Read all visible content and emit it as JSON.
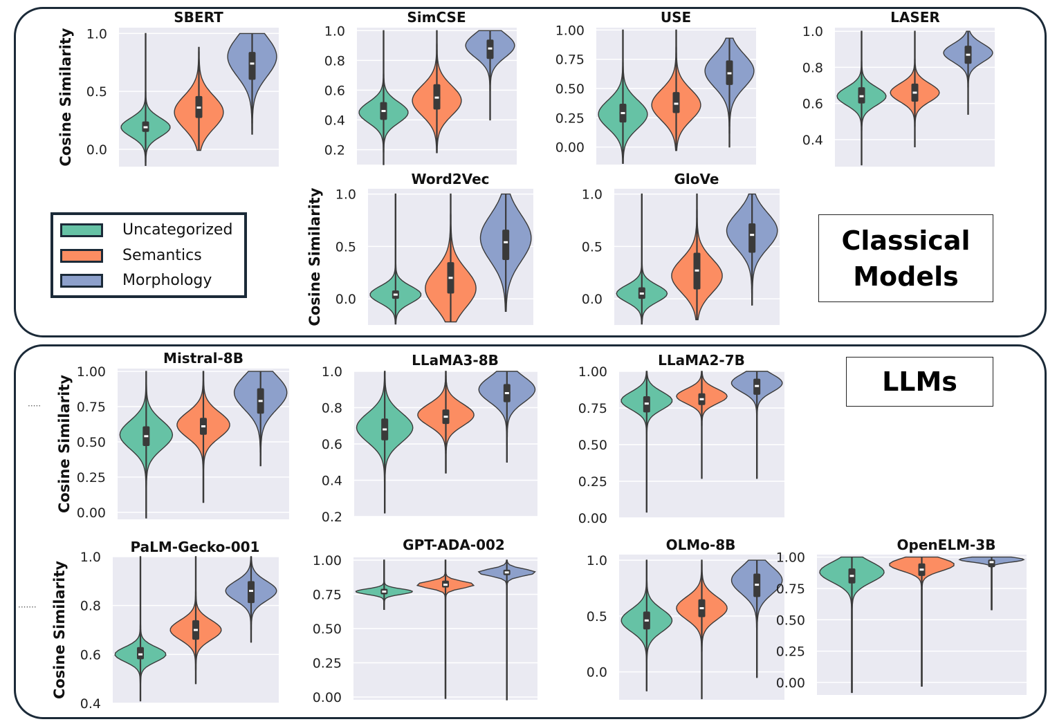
{
  "sections": {
    "classical_label": "Classical\nModels",
    "llms_label": "LLMs"
  },
  "legend": {
    "items": [
      {
        "label": "Uncategorized",
        "color": "#66c2a5"
      },
      {
        "label": "Semantics",
        "color": "#fc8d62"
      },
      {
        "label": "Morphology",
        "color": "#8da0cb"
      }
    ]
  },
  "chart_data": [
    {
      "type": "violin",
      "title": "SBERT",
      "ylabel": "Cosine Similarity",
      "ylim": [
        -0.15,
        1.05
      ],
      "ticks": [
        "0.0",
        "0.5",
        "1.0"
      ],
      "tick_values": [
        0,
        0.5,
        1.0
      ],
      "series": [
        {
          "name": "Uncategorized",
          "min": -0.14,
          "q1": 0.15,
          "median": 0.19,
          "q3": 0.24,
          "max": 1.0,
          "mode": 0.19,
          "spread": 0.08
        },
        {
          "name": "Semantics",
          "min": -0.01,
          "q1": 0.27,
          "median": 0.36,
          "q3": 0.46,
          "max": 0.88,
          "mode": 0.32,
          "spread": 0.14
        },
        {
          "name": "Morphology",
          "min": 0.13,
          "q1": 0.6,
          "median": 0.74,
          "q3": 0.84,
          "max": 1.0,
          "mode": 0.8,
          "spread": 0.17
        }
      ]
    },
    {
      "type": "violin",
      "title": "SimCSE",
      "ylabel": "",
      "ylim": [
        0.1,
        1.02
      ],
      "ticks": [
        "0.2",
        "0.4",
        "0.6",
        "0.8",
        "1.0"
      ],
      "tick_values": [
        0.2,
        0.4,
        0.6,
        0.8,
        1.0
      ],
      "series": [
        {
          "name": "Uncategorized",
          "min": 0.1,
          "q1": 0.4,
          "median": 0.46,
          "q3": 0.52,
          "max": 1.0,
          "mode": 0.45,
          "spread": 0.07
        },
        {
          "name": "Semantics",
          "min": 0.18,
          "q1": 0.47,
          "median": 0.55,
          "q3": 0.64,
          "max": 1.0,
          "mode": 0.53,
          "spread": 0.1
        },
        {
          "name": "Morphology",
          "min": 0.4,
          "q1": 0.81,
          "median": 0.88,
          "q3": 0.94,
          "max": 1.0,
          "mode": 0.9,
          "spread": 0.08
        }
      ]
    },
    {
      "type": "violin",
      "title": "USE",
      "ylabel": "",
      "ylim": [
        -0.15,
        1.02
      ],
      "ticks": [
        "0.00",
        "0.25",
        "0.50",
        "0.75",
        "1.00"
      ],
      "tick_values": [
        0,
        0.25,
        0.5,
        0.75,
        1.0
      ],
      "series": [
        {
          "name": "Uncategorized",
          "min": -0.14,
          "q1": 0.21,
          "median": 0.29,
          "q3": 0.37,
          "max": 1.0,
          "mode": 0.28,
          "spread": 0.12
        },
        {
          "name": "Semantics",
          "min": -0.03,
          "q1": 0.29,
          "median": 0.37,
          "q3": 0.47,
          "max": 1.0,
          "mode": 0.36,
          "spread": 0.13
        },
        {
          "name": "Morphology",
          "min": 0.0,
          "q1": 0.53,
          "median": 0.63,
          "q3": 0.74,
          "max": 0.93,
          "mode": 0.65,
          "spread": 0.14
        }
      ]
    },
    {
      "type": "violin",
      "title": "LASER",
      "ylabel": "",
      "ylim": [
        0.25,
        1.02
      ],
      "ticks": [
        "0.4",
        "0.6",
        "0.8",
        "1.0"
      ],
      "tick_values": [
        0.4,
        0.6,
        0.8,
        1.0
      ],
      "series": [
        {
          "name": "Uncategorized",
          "min": 0.26,
          "q1": 0.6,
          "median": 0.64,
          "q3": 0.69,
          "max": 1.0,
          "mode": 0.64,
          "spread": 0.05
        },
        {
          "name": "Semantics",
          "min": 0.36,
          "q1": 0.61,
          "median": 0.66,
          "q3": 0.71,
          "max": 1.0,
          "mode": 0.66,
          "spread": 0.05
        },
        {
          "name": "Morphology",
          "min": 0.54,
          "q1": 0.82,
          "median": 0.87,
          "q3": 0.92,
          "max": 1.0,
          "mode": 0.88,
          "spread": 0.05
        }
      ]
    },
    {
      "type": "violin",
      "title": "Word2Vec",
      "ylabel": "Cosine Similarity",
      "ylim": [
        -0.25,
        1.05
      ],
      "ticks": [
        "0.0",
        "0.5",
        "1.0"
      ],
      "tick_values": [
        0,
        0.5,
        1.0
      ],
      "series": [
        {
          "name": "Uncategorized",
          "min": -0.24,
          "q1": 0.0,
          "median": 0.04,
          "q3": 0.08,
          "max": 1.0,
          "mode": 0.04,
          "spread": 0.08
        },
        {
          "name": "Semantics",
          "min": -0.22,
          "q1": 0.05,
          "median": 0.2,
          "q3": 0.35,
          "max": 1.0,
          "mode": 0.1,
          "spread": 0.18
        },
        {
          "name": "Morphology",
          "min": -0.12,
          "q1": 0.37,
          "median": 0.54,
          "q3": 0.66,
          "max": 1.0,
          "mode": 0.58,
          "spread": 0.22
        }
      ]
    },
    {
      "type": "violin",
      "title": "GloVe",
      "ylabel": "",
      "ylim": [
        -0.25,
        1.05
      ],
      "ticks": [
        "0.0",
        "0.5",
        "1.0"
      ],
      "tick_values": [
        0,
        0.5,
        1.0
      ],
      "series": [
        {
          "name": "Uncategorized",
          "min": -0.24,
          "q1": 0.0,
          "median": 0.05,
          "q3": 0.11,
          "max": 1.0,
          "mode": 0.05,
          "spread": 0.08
        },
        {
          "name": "Semantics",
          "min": -0.2,
          "q1": 0.09,
          "median": 0.27,
          "q3": 0.44,
          "max": 1.0,
          "mode": 0.22,
          "spread": 0.16
        },
        {
          "name": "Morphology",
          "min": -0.06,
          "q1": 0.44,
          "median": 0.61,
          "q3": 0.72,
          "max": 1.0,
          "mode": 0.65,
          "spread": 0.17
        }
      ]
    },
    {
      "type": "violin",
      "title": "Mistral-8B",
      "ylabel": "Cosine Similarity",
      "ylim": [
        -0.05,
        1.02
      ],
      "ticks": [
        "0.00",
        "0.25",
        "0.50",
        "0.75",
        "1.00"
      ],
      "tick_values": [
        0,
        0.25,
        0.5,
        0.75,
        1.0
      ],
      "series": [
        {
          "name": "Uncategorized",
          "min": -0.04,
          "q1": 0.47,
          "median": 0.54,
          "q3": 0.61,
          "max": 1.0,
          "mode": 0.55,
          "spread": 0.1
        },
        {
          "name": "Semantics",
          "min": 0.07,
          "q1": 0.55,
          "median": 0.61,
          "q3": 0.67,
          "max": 1.0,
          "mode": 0.62,
          "spread": 0.09
        },
        {
          "name": "Morphology",
          "min": 0.33,
          "q1": 0.7,
          "median": 0.79,
          "q3": 0.88,
          "max": 1.0,
          "mode": 0.85,
          "spread": 0.12
        }
      ]
    },
    {
      "type": "violin",
      "title": "LLaMA3-8B",
      "ylabel": "",
      "ylim": [
        0.2,
        1.0
      ],
      "ticks": [
        "0.2",
        "0.4",
        "0.6",
        "0.8",
        "1.0"
      ],
      "tick_values": [
        0.2,
        0.4,
        0.6,
        0.8,
        1.0
      ],
      "series": [
        {
          "name": "Uncategorized",
          "min": 0.22,
          "q1": 0.62,
          "median": 0.68,
          "q3": 0.74,
          "max": 1.0,
          "mode": 0.69,
          "spread": 0.08
        },
        {
          "name": "Semantics",
          "min": 0.44,
          "q1": 0.71,
          "median": 0.75,
          "q3": 0.79,
          "max": 1.0,
          "mode": 0.76,
          "spread": 0.06
        },
        {
          "name": "Morphology",
          "min": 0.5,
          "q1": 0.83,
          "median": 0.88,
          "q3": 0.93,
          "max": 1.0,
          "mode": 0.9,
          "spread": 0.07
        }
      ]
    },
    {
      "type": "violin",
      "title": "LLaMA2-7B",
      "ylabel": "",
      "ylim": [
        0.0,
        1.0
      ],
      "ticks": [
        "0.00",
        "0.25",
        "0.50",
        "0.75",
        "1.00"
      ],
      "tick_values": [
        0,
        0.25,
        0.5,
        0.75,
        1.0
      ],
      "series": [
        {
          "name": "Uncategorized",
          "min": 0.04,
          "q1": 0.72,
          "median": 0.78,
          "q3": 0.83,
          "max": 1.0,
          "mode": 0.8,
          "spread": 0.06
        },
        {
          "name": "Semantics",
          "min": 0.27,
          "q1": 0.77,
          "median": 0.81,
          "q3": 0.85,
          "max": 1.0,
          "mode": 0.83,
          "spread": 0.05
        },
        {
          "name": "Morphology",
          "min": 0.27,
          "q1": 0.84,
          "median": 0.9,
          "q3": 0.95,
          "max": 1.0,
          "mode": 0.92,
          "spread": 0.06
        }
      ]
    },
    {
      "type": "violin",
      "title": "PaLM-Gecko-001",
      "ylabel": "Cosine Similarity",
      "ylim": [
        0.4,
        1.0
      ],
      "ticks": [
        "0.4",
        "0.6",
        "0.8",
        "1.0"
      ],
      "tick_values": [
        0.4,
        0.6,
        0.8,
        1.0
      ],
      "series": [
        {
          "name": "Uncategorized",
          "min": 0.41,
          "q1": 0.58,
          "median": 0.6,
          "q3": 0.63,
          "max": 1.0,
          "mode": 0.6,
          "spread": 0.03
        },
        {
          "name": "Semantics",
          "min": 0.48,
          "q1": 0.66,
          "median": 0.7,
          "q3": 0.74,
          "max": 1.0,
          "mode": 0.7,
          "spread": 0.04
        },
        {
          "name": "Morphology",
          "min": 0.65,
          "q1": 0.81,
          "median": 0.86,
          "q3": 0.9,
          "max": 1.0,
          "mode": 0.86,
          "spread": 0.04
        }
      ]
    },
    {
      "type": "violin",
      "title": "GPT-ADA-002",
      "ylabel": "",
      "ylim": [
        -0.02,
        1.02
      ],
      "ticks": [
        "0.00",
        "0.25",
        "0.50",
        "0.75",
        "1.00"
      ],
      "tick_values": [
        0,
        0.25,
        0.5,
        0.75,
        1.0
      ],
      "series": [
        {
          "name": "Uncategorized",
          "min": 0.64,
          "q1": 0.75,
          "median": 0.77,
          "q3": 0.79,
          "max": 1.0,
          "mode": 0.77,
          "spread": 0.02
        },
        {
          "name": "Semantics",
          "min": -0.01,
          "q1": 0.8,
          "median": 0.82,
          "q3": 0.85,
          "max": 1.0,
          "mode": 0.82,
          "spread": 0.025
        },
        {
          "name": "Morphology",
          "min": -0.02,
          "q1": 0.89,
          "median": 0.91,
          "q3": 0.93,
          "max": 1.0,
          "mode": 0.91,
          "spread": 0.025
        }
      ]
    },
    {
      "type": "violin",
      "title": "OLMo-8B",
      "ylabel": "",
      "ylim": [
        -0.25,
        1.05
      ],
      "ticks": [
        "0.0",
        "0.5",
        "1.0"
      ],
      "tick_values": [
        0,
        0.5,
        1.0
      ],
      "series": [
        {
          "name": "Uncategorized",
          "min": -0.17,
          "q1": 0.38,
          "median": 0.46,
          "q3": 0.54,
          "max": 1.0,
          "mode": 0.46,
          "spread": 0.1
        },
        {
          "name": "Semantics",
          "min": -0.24,
          "q1": 0.49,
          "median": 0.57,
          "q3": 0.65,
          "max": 1.0,
          "mode": 0.57,
          "spread": 0.1
        },
        {
          "name": "Morphology",
          "min": -0.05,
          "q1": 0.67,
          "median": 0.78,
          "q3": 0.88,
          "max": 1.0,
          "mode": 0.82,
          "spread": 0.12
        }
      ]
    },
    {
      "type": "violin",
      "title": "OpenELM-3B",
      "ylabel": "",
      "ylim": [
        -0.1,
        1.02
      ],
      "ticks": [
        "0.00",
        "0.25",
        "0.50",
        "0.75",
        "1.00"
      ],
      "tick_values": [
        0,
        0.25,
        0.5,
        0.75,
        1.0
      ],
      "series": [
        {
          "name": "Uncategorized",
          "min": -0.08,
          "q1": 0.79,
          "median": 0.85,
          "q3": 0.91,
          "max": 1.0,
          "mode": 0.88,
          "spread": 0.08
        },
        {
          "name": "Semantics",
          "min": -0.03,
          "q1": 0.85,
          "median": 0.9,
          "q3": 0.95,
          "max": 1.0,
          "mode": 0.94,
          "spread": 0.05
        },
        {
          "name": "Morphology",
          "min": 0.58,
          "q1": 0.92,
          "median": 0.96,
          "q3": 0.98,
          "max": 1.0,
          "mode": 0.98,
          "spread": 0.02
        }
      ]
    }
  ]
}
